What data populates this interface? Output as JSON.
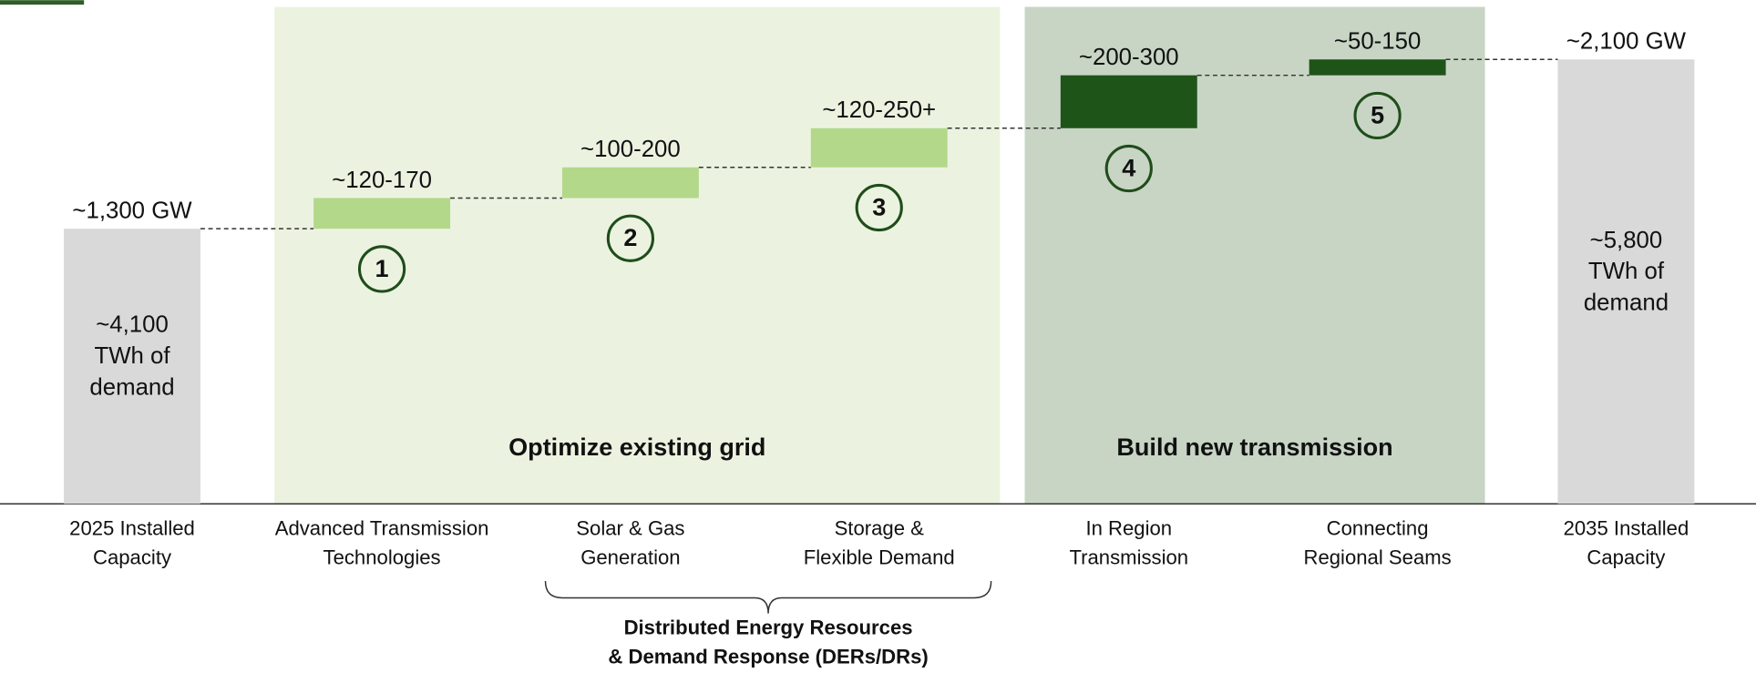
{
  "chart_data": {
    "type": "waterfall",
    "categories": [
      [
        "2025 Installed",
        "Capacity"
      ],
      [
        "Advanced Transmission",
        "Technologies"
      ],
      [
        "Solar & Gas",
        "Generation"
      ],
      [
        "Storage &",
        "Flexible Demand"
      ],
      [
        "In Region",
        "Transmission"
      ],
      [
        "Connecting",
        "Regional Seams"
      ],
      [
        "2035 Installed",
        "Capacity"
      ]
    ],
    "measures": [
      "absolute",
      "relative",
      "relative",
      "relative",
      "relative",
      "relative",
      "total"
    ],
    "values": [
      1300,
      145,
      145,
      185,
      250,
      75,
      2100
    ],
    "value_labels": [
      "~1,300 GW",
      "~120-170",
      "~100-200",
      "~120-250+",
      "~200-300",
      "~50-150",
      "~2,100 GW"
    ],
    "colors": [
      "#d9d9d9",
      "#b3d88a",
      "#b3d88a",
      "#b3d88a",
      "#1f5418",
      "#1f5418",
      "#d9d9d9"
    ],
    "step_numbers": [
      null,
      "1",
      "2",
      "3",
      "4",
      "5",
      null
    ],
    "bar_notes": [
      [
        "~4,100",
        "TWh of",
        "demand"
      ],
      null,
      null,
      null,
      null,
      null,
      [
        "~5,800",
        "TWh of",
        "demand"
      ]
    ],
    "regions": [
      {
        "label": "Optimize existing grid",
        "from": 1,
        "to": 3,
        "color": "#ebf3e0"
      },
      {
        "label": "Build new transmission",
        "from": 4,
        "to": 5,
        "color": "#c8d5c5"
      }
    ],
    "brace": {
      "from": 2,
      "to": 3,
      "label": [
        "Distributed Energy Resources",
        "& Demand Response (DERs/DRs)"
      ]
    },
    "ylim": [
      0,
      2380
    ]
  }
}
